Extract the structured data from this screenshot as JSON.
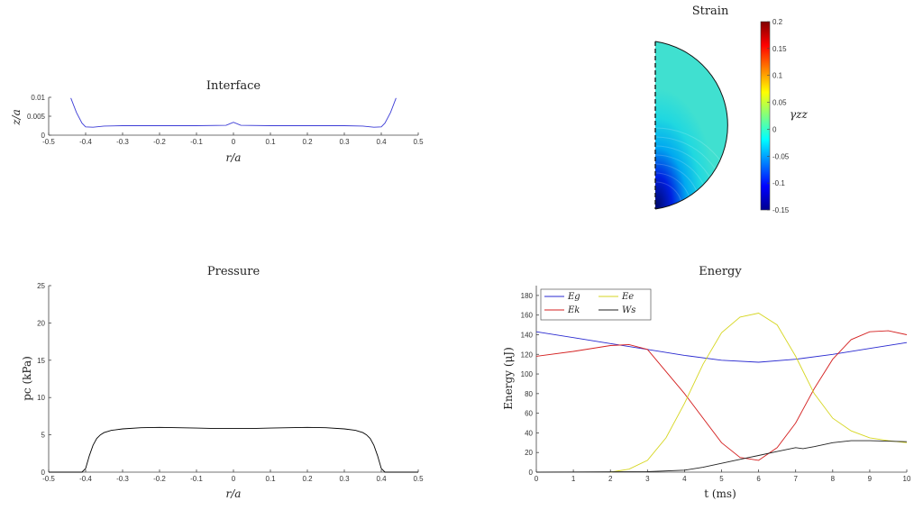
{
  "chart_data": [
    {
      "id": "interface",
      "type": "line",
      "title": "Interface",
      "xlabel": "r/a",
      "ylabel": "z/a",
      "xlim": [
        -0.5,
        0.5
      ],
      "ylim": [
        0,
        0.01
      ],
      "xticks": [
        -0.5,
        -0.4,
        -0.3,
        -0.2,
        -0.1,
        0,
        0.1,
        0.2,
        0.3,
        0.4,
        0.5
      ],
      "xtick_labels": [
        "-0.5",
        "-0.4",
        "-0.3",
        "-0.2",
        "-0.1",
        "0",
        "0.1",
        "0.2",
        "0.3",
        "0.4",
        "0.5"
      ],
      "yticks": [
        0,
        0.005,
        0.01
      ],
      "ytick_labels": [
        "0",
        "0.005",
        "0.01"
      ],
      "series": [
        {
          "color": "#3b3bd6",
          "x": [
            -0.44,
            -0.425,
            -0.41,
            -0.4,
            -0.38,
            -0.35,
            -0.3,
            -0.2,
            -0.1,
            -0.02,
            0,
            0.02,
            0.1,
            0.2,
            0.3,
            0.35,
            0.38,
            0.4,
            0.41,
            0.425,
            0.44
          ],
          "y": [
            0.0098,
            0.006,
            0.0032,
            0.0022,
            0.0021,
            0.0024,
            0.0025,
            0.0025,
            0.0025,
            0.0026,
            0.0034,
            0.0026,
            0.0025,
            0.0025,
            0.0025,
            0.0024,
            0.0021,
            0.0022,
            0.0032,
            0.006,
            0.0098
          ]
        }
      ]
    },
    {
      "id": "strain",
      "type": "heatmap",
      "title": "Strain",
      "colorbar_label": "γzz",
      "colorbar_range": [
        -0.15,
        0.2
      ],
      "colorbar_ticks": [
        -0.15,
        -0.1,
        -0.05,
        0,
        0.05,
        0.1,
        0.15,
        0.2
      ],
      "colorbar_tick_labels": [
        "-0.15",
        "-0.1",
        "-0.05",
        "0",
        "0.05",
        "0.1",
        "0.15",
        "0.2"
      ]
    },
    {
      "id": "pressure",
      "type": "line",
      "title": "Pressure",
      "xlabel": "r/a",
      "ylabel": "pc (kPa)",
      "xlim": [
        -0.5,
        0.5
      ],
      "ylim": [
        0,
        25
      ],
      "xticks": [
        -0.5,
        -0.4,
        -0.3,
        -0.2,
        -0.1,
        0,
        0.1,
        0.2,
        0.3,
        0.4,
        0.5
      ],
      "xtick_labels": [
        "-0.5",
        "-0.4",
        "-0.3",
        "-0.2",
        "-0.1",
        "0",
        "0.1",
        "0.2",
        "0.3",
        "0.4",
        "0.5"
      ],
      "yticks": [
        0,
        5,
        10,
        15,
        20,
        25
      ],
      "ytick_labels": [
        "0",
        "5",
        "10",
        "15",
        "20",
        "25"
      ],
      "series": [
        {
          "color": "#000000",
          "x": [
            -0.5,
            -0.41,
            -0.4,
            -0.39,
            -0.38,
            -0.37,
            -0.36,
            -0.35,
            -0.33,
            -0.3,
            -0.25,
            -0.2,
            -0.15,
            -0.1,
            -0.05,
            0,
            0.05,
            0.1,
            0.15,
            0.2,
            0.25,
            0.3,
            0.33,
            0.35,
            0.36,
            0.37,
            0.38,
            0.39,
            0.4,
            0.41,
            0.5
          ],
          "y": [
            0,
            0,
            0.5,
            2.2,
            3.6,
            4.5,
            5.0,
            5.3,
            5.6,
            5.8,
            5.95,
            6.0,
            5.95,
            5.9,
            5.85,
            5.85,
            5.85,
            5.9,
            5.95,
            6.0,
            5.95,
            5.8,
            5.6,
            5.3,
            5.0,
            4.5,
            3.6,
            2.2,
            0.5,
            0,
            0
          ]
        }
      ]
    },
    {
      "id": "energy",
      "type": "line",
      "title": "Energy",
      "xlabel": "t (ms)",
      "ylabel": "Energy (μJ)",
      "xlim": [
        0,
        10
      ],
      "ylim": [
        0,
        190
      ],
      "xticks": [
        0,
        1,
        2,
        3,
        4,
        5,
        6,
        7,
        8,
        9,
        10
      ],
      "xtick_labels": [
        "0",
        "1",
        "2",
        "3",
        "4",
        "5",
        "6",
        "7",
        "8",
        "9",
        "10"
      ],
      "yticks": [
        0,
        20,
        40,
        60,
        80,
        100,
        120,
        140,
        160,
        180
      ],
      "ytick_labels": [
        "0",
        "20",
        "40",
        "60",
        "80",
        "100",
        "120",
        "140",
        "160",
        "180"
      ],
      "legend_position": "top-left",
      "series": [
        {
          "name": "Eg",
          "color": "#2a2ad0",
          "x": [
            0,
            1,
            2,
            3,
            4,
            5,
            6,
            7,
            8,
            9,
            10
          ],
          "y": [
            143,
            137,
            131,
            125,
            119,
            114,
            112,
            115,
            120,
            126,
            132
          ]
        },
        {
          "name": "Ek",
          "color": "#d42020",
          "x": [
            0,
            1,
            2,
            2.5,
            3,
            4,
            5,
            5.5,
            6,
            6.5,
            7,
            7.5,
            8,
            8.5,
            9,
            9.5,
            10
          ],
          "y": [
            118,
            123,
            129,
            130,
            125,
            80,
            30,
            15,
            12,
            25,
            50,
            85,
            115,
            135,
            143,
            144,
            140
          ]
        },
        {
          "name": "Ee",
          "color": "#d6d620",
          "x": [
            2,
            2.5,
            3,
            3.5,
            4,
            4.5,
            5,
            5.5,
            6,
            6.5,
            7,
            7.5,
            8,
            8.5,
            9,
            9.5,
            10
          ],
          "y": [
            0,
            3,
            12,
            35,
            70,
            110,
            142,
            158,
            162,
            150,
            118,
            80,
            55,
            42,
            35,
            32,
            30
          ]
        },
        {
          "name": "Ws",
          "color": "#222222",
          "x": [
            0,
            3,
            4,
            4.5,
            5,
            5.5,
            6,
            6.5,
            7,
            7.2,
            7.5,
            8,
            8.5,
            9,
            10
          ],
          "y": [
            0,
            0.5,
            2,
            5,
            9,
            13,
            17,
            21,
            25,
            24,
            26,
            30,
            32,
            32,
            31
          ]
        }
      ]
    }
  ]
}
